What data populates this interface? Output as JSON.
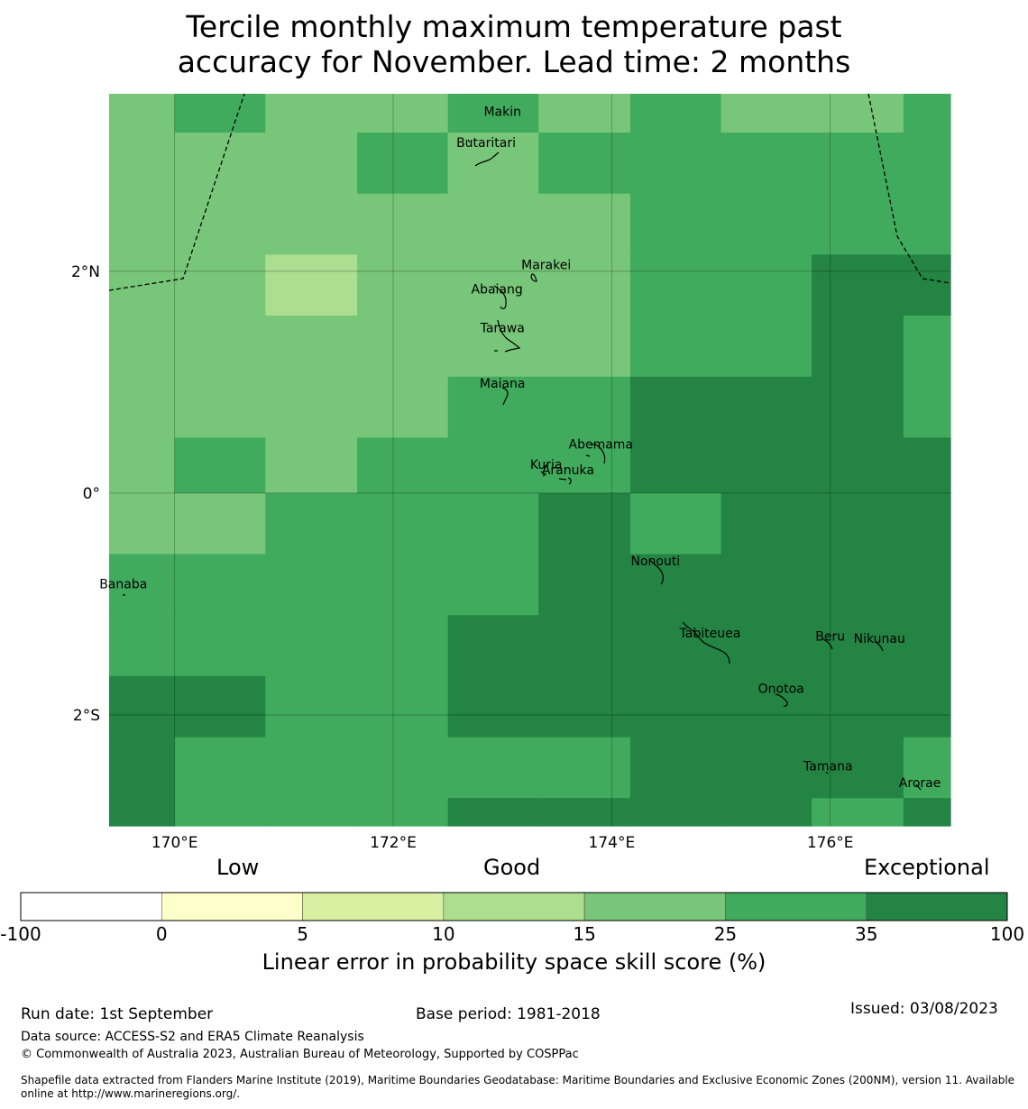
{
  "title": {
    "line1": "Tercile monthly maximum temperature past",
    "line2": "accuracy for November. Lead time: 2 months"
  },
  "map": {
    "lon_range": [
      169.4,
      177.1
    ],
    "lat_range": [
      -3.0,
      3.6
    ],
    "lon_ticks": [
      {
        "value": 170,
        "label": "170°E"
      },
      {
        "value": 172,
        "label": "172°E"
      },
      {
        "value": 174,
        "label": "174°E"
      },
      {
        "value": 176,
        "label": "176°E"
      }
    ],
    "lat_ticks": [
      {
        "value": 2,
        "label": "2°N"
      },
      {
        "value": 0,
        "label": "0°"
      },
      {
        "value": -2,
        "label": "2°S"
      }
    ],
    "grid": true,
    "category_colors": [
      "#ffffff",
      "#ffffcc",
      "#d9f0a3",
      "#addd8e",
      "#78c679",
      "#41ab5d",
      "#238443"
    ],
    "skill_grid_lon_edges": [
      169.4,
      170.0,
      170.83,
      171.67,
      172.5,
      173.33,
      174.17,
      175.0,
      175.83,
      176.67,
      177.1
    ],
    "skill_grid_lat_edges": [
      3.6,
      3.25,
      2.7,
      2.15,
      1.6,
      1.05,
      0.5,
      0.0,
      -0.55,
      -1.1,
      -1.65,
      -2.2,
      -2.75,
      -3.0
    ],
    "skill_grid_categories": [
      [
        4,
        5,
        4,
        4,
        5,
        4,
        5,
        4,
        4,
        5
      ],
      [
        4,
        4,
        4,
        5,
        4,
        5,
        5,
        5,
        5,
        5
      ],
      [
        4,
        4,
        4,
        4,
        4,
        4,
        5,
        5,
        5,
        5
      ],
      [
        4,
        4,
        3,
        4,
        4,
        4,
        5,
        5,
        6,
        6
      ],
      [
        4,
        4,
        4,
        4,
        4,
        4,
        5,
        5,
        6,
        5
      ],
      [
        4,
        4,
        4,
        4,
        5,
        5,
        6,
        6,
        6,
        5
      ],
      [
        4,
        5,
        4,
        5,
        5,
        5,
        6,
        6,
        6,
        6
      ],
      [
        4,
        4,
        5,
        5,
        5,
        6,
        5,
        6,
        6,
        6
      ],
      [
        5,
        5,
        5,
        5,
        5,
        6,
        6,
        6,
        6,
        6
      ],
      [
        5,
        5,
        5,
        5,
        6,
        6,
        6,
        6,
        6,
        6
      ],
      [
        6,
        6,
        5,
        5,
        6,
        6,
        6,
        6,
        6,
        6
      ],
      [
        6,
        5,
        5,
        5,
        5,
        5,
        6,
        6,
        6,
        5
      ],
      [
        6,
        5,
        5,
        5,
        6,
        6,
        6,
        6,
        5,
        6
      ]
    ],
    "islands": [
      {
        "name": "Makin",
        "lon": 173.0,
        "lat": 3.4
      },
      {
        "name": "Butaritari",
        "lon": 172.85,
        "lat": 3.12
      },
      {
        "name": "Marakei",
        "lon": 173.4,
        "lat": 2.02
      },
      {
        "name": "Abaiang",
        "lon": 172.95,
        "lat": 1.8
      },
      {
        "name": "Tarawa",
        "lon": 173.0,
        "lat": 1.45
      },
      {
        "name": "Maiana",
        "lon": 173.0,
        "lat": 0.95
      },
      {
        "name": "Abemama",
        "lon": 173.9,
        "lat": 0.4
      },
      {
        "name": "Kuria",
        "lon": 173.4,
        "lat": 0.22
      },
      {
        "name": "Aranuka",
        "lon": 173.6,
        "lat": 0.17
      },
      {
        "name": "Nonouti",
        "lon": 174.4,
        "lat": -0.65
      },
      {
        "name": "Banaba",
        "lon": 169.53,
        "lat": -0.86
      },
      {
        "name": "Tabiteuea",
        "lon": 174.9,
        "lat": -1.3
      },
      {
        "name": "Beru",
        "lon": 176.0,
        "lat": -1.33
      },
      {
        "name": "Nikunau",
        "lon": 176.45,
        "lat": -1.35
      },
      {
        "name": "Onotoa",
        "lon": 175.55,
        "lat": -1.8
      },
      {
        "name": "Tamana",
        "lon": 175.98,
        "lat": -2.5
      },
      {
        "name": "Arorae",
        "lon": 176.82,
        "lat": -2.65
      }
    ]
  },
  "colorbar": {
    "words": [
      {
        "label": "Low"
      },
      {
        "label": "Good"
      },
      {
        "label": "Exceptional"
      }
    ],
    "bins": [
      {
        "from": -100,
        "to": 0,
        "color": "#ffffff"
      },
      {
        "from": 0,
        "to": 5,
        "color": "#ffffcc"
      },
      {
        "from": 5,
        "to": 10,
        "color": "#d9f0a3"
      },
      {
        "from": 10,
        "to": 15,
        "color": "#addd8e"
      },
      {
        "from": 15,
        "to": 25,
        "color": "#78c679"
      },
      {
        "from": 25,
        "to": 35,
        "color": "#41ab5d"
      },
      {
        "from": 35,
        "to": 100,
        "color": "#238443"
      }
    ],
    "tick_labels": [
      "-100",
      "0",
      "5",
      "10",
      "15",
      "25",
      "35",
      "100"
    ],
    "title": "Linear error in probability space skill score (%)"
  },
  "footer": {
    "run_date": "Run date: 1st September",
    "base_period": "Base period: 1981-2018",
    "issued": "Issued: 03/08/2023",
    "data_source": "Data source: ACCESS-S2 and ERA5 Climate Reanalysis",
    "copyright": "© Commonwealth of Australia 2023, Australian Bureau of Meteorology, Supported by COSPPac",
    "shapefile_line1": "Shapefile data extracted from Flanders Marine Institute (2019), Maritime Boundaries Geodatabase: Maritime Boundaries and Exclusive Economic Zones (200NM), version 11. Available",
    "shapefile_line2": "online at http://www.marineregions.org/."
  }
}
